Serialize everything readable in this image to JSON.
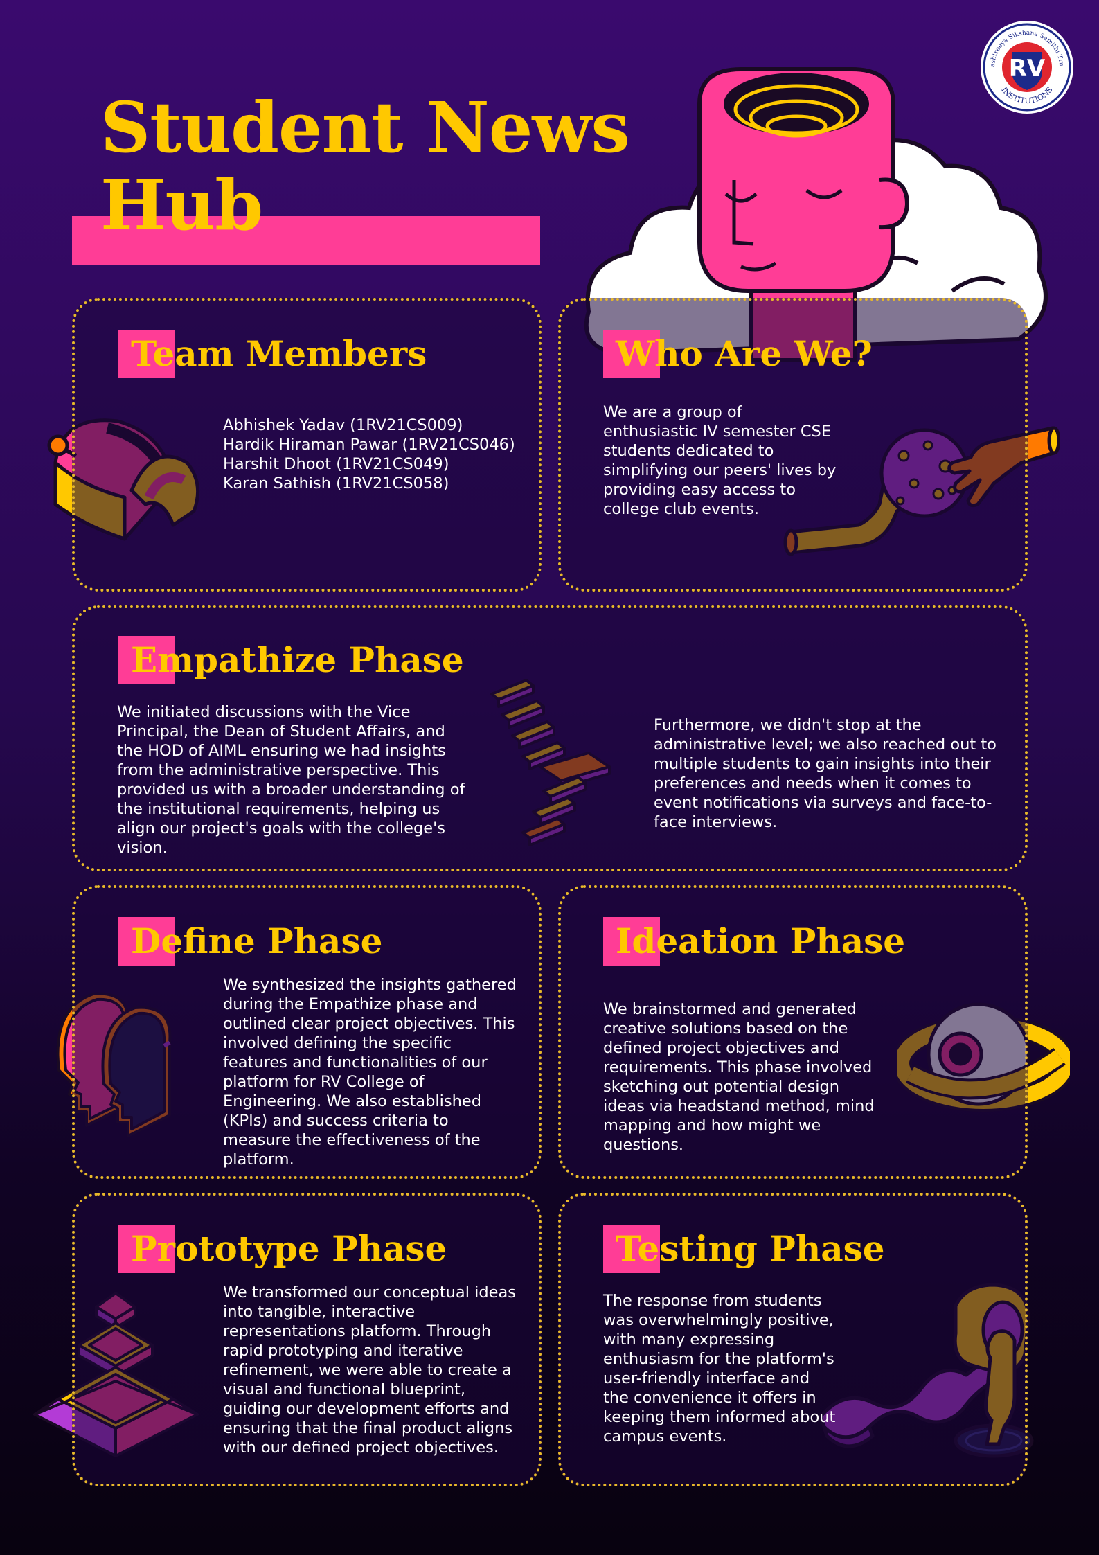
{
  "title": "Student News Hub",
  "logo": {
    "letters": "RV",
    "ring_top": "Rashtreeya Sikshana Samithi Trust",
    "ring_bottom": "INSTITUTIONS"
  },
  "colors": {
    "accent_yellow": "#ffc800",
    "accent_pink": "#ff3d96",
    "purple": "#b33bd6",
    "background_top": "#3a0a6e",
    "background_bottom": "#08020f"
  },
  "sections": {
    "team": {
      "heading": "Team Members",
      "members": [
        "Abhishek Yadav (1RV21CS009)",
        "Hardik Hiraman Pawar (1RV21CS046)",
        "Harshit Dhoot (1RV21CS049)",
        "Karan Sathish (1RV21CS058)"
      ]
    },
    "who": {
      "heading": "Who Are We?",
      "body": "We are a group of enthusiastic IV semester CSE students dedicated to simplifying our peers' lives by providing easy access to college club events."
    },
    "empathize": {
      "heading": "Empathize Phase",
      "body_left": "We initiated discussions with the Vice Principal, the Dean of Student Affairs, and the HOD of AIML ensuring we had insights from the administrative perspective. This provided us with a broader understanding of the institutional requirements, helping us align our project's goals with the college's vision.",
      "body_right": "Furthermore, we didn't stop at the administrative level; we also reached out to multiple students to gain insights into their preferences and needs when it comes to event notifications via surveys and face-to-face interviews."
    },
    "define": {
      "heading": "Define Phase",
      "body": "We synthesized the insights gathered during the Empathize phase and outlined clear project objectives. This involved defining the specific features and functionalities of our platform for RV College of Engineering. We also established (KPIs) and success criteria to measure the effectiveness of the platform."
    },
    "ideation": {
      "heading": "Ideation Phase",
      "body": "We brainstormed and generated creative solutions based on the defined project objectives and requirements. This phase involved sketching out potential design ideas via headstand method, mind mapping and how might we questions."
    },
    "prototype": {
      "heading": "Prototype Phase",
      "body": "We transformed our conceptual ideas into tangible, interactive representations platform. Through rapid prototyping and iterative refinement, we were able to create a visual and functional blueprint, guiding our development efforts and ensuring that the final product aligns with our defined project objectives."
    },
    "testing": {
      "heading": "Testing Phase",
      "body": "The response from students was overwhelmingly positive, with many expressing enthusiasm for the platform's user-friendly interface and the convenience it offers in keeping them informed about campus events."
    }
  },
  "icons": [
    "rv-logo-icon",
    "head-cloud-illustration",
    "dome-lever-icon",
    "hands-planet-icon",
    "stairs-icon",
    "head-silhouettes-icon",
    "eye-planet-icon",
    "pyramid-icon",
    "portal-ribbon-icon"
  ]
}
